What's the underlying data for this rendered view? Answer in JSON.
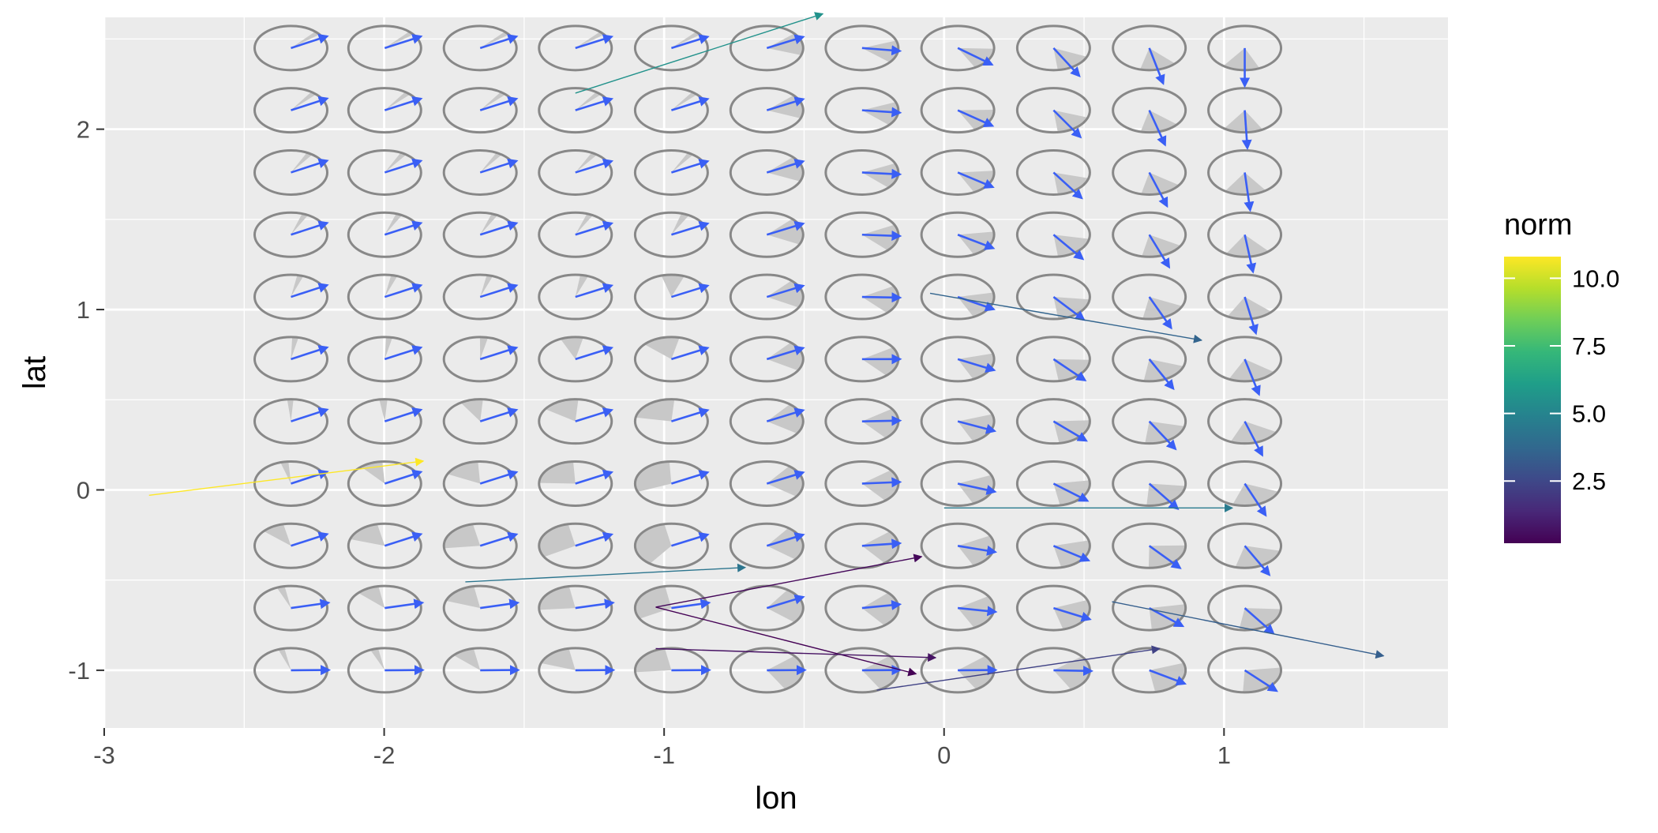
{
  "chart_data": {
    "type": "scatter",
    "description_kind": "vector field glyphs with grey circles and arrows on a lon/lat grid",
    "xlabel": "lon",
    "ylabel": "lat",
    "xlim": [
      -3.0,
      1.8
    ],
    "ylim": [
      -1.32,
      2.62
    ],
    "x_ticks": [
      -3,
      -2,
      -1,
      0,
      1
    ],
    "x_tick_labels": [
      "-3",
      "-2",
      "-1",
      "0",
      "1"
    ],
    "y_ticks": [
      -1,
      0,
      1,
      2
    ],
    "y_tick_labels": [
      "-1",
      "0",
      "1",
      "2"
    ],
    "grid": true,
    "grid_lon": [
      -2.333,
      -1.998,
      -1.657,
      -1.317,
      -0.974,
      -0.633,
      -0.293,
      0.049,
      0.391,
      0.733,
      1.074
    ],
    "grid_lat": [
      -1.0,
      -0.655,
      -0.31,
      0.035,
      0.38,
      0.725,
      1.07,
      1.415,
      1.76,
      2.105,
      2.45
    ],
    "legend": {
      "title": "norm",
      "position": "right",
      "ticks": [
        2.5,
        5.0,
        7.5,
        10.0
      ],
      "tick_labels": [
        "2.5",
        "5.0",
        "7.5",
        "10.0"
      ],
      "range": [
        0.2,
        10.8
      ],
      "colormap": "viridis"
    },
    "colors": {
      "panel": "#EBEBEB",
      "circle": "#888888",
      "wedge": "#C8C8C8",
      "arrow": "#3A5FF5"
    },
    "long_arrows": [
      {
        "x0": -1.317,
        "y0": 2.2,
        "x1": -0.433,
        "y1": 2.64,
        "norm": 5.6
      },
      {
        "x0": -0.05,
        "y0": 1.09,
        "x1": 0.92,
        "y1": 0.83,
        "norm": 3.6
      },
      {
        "x0": -2.84,
        "y0": -0.03,
        "x1": -1.86,
        "y1": 0.16,
        "norm": 10.8
      },
      {
        "x0": 0.0,
        "y0": -0.1,
        "x1": 1.03,
        "y1": -0.1,
        "norm": 4.6
      },
      {
        "x0": -1.71,
        "y0": -0.51,
        "x1": -0.71,
        "y1": -0.43,
        "norm": 4.3
      },
      {
        "x0": -1.03,
        "y0": -0.65,
        "x1": -0.08,
        "y1": -0.37,
        "norm": 0.4
      },
      {
        "x0": -1.03,
        "y0": -0.65,
        "x1": -0.1,
        "y1": -1.02,
        "norm": 0.2
      },
      {
        "x0": -1.03,
        "y0": -0.88,
        "x1": -0.03,
        "y1": -0.93,
        "norm": 0.7
      },
      {
        "x0": -0.24,
        "y0": -1.11,
        "x1": 0.77,
        "y1": -0.88,
        "norm": 2.3
      },
      {
        "x0": 0.6,
        "y0": -0.62,
        "x1": 1.57,
        "y1": -0.92,
        "norm": 3.4
      }
    ]
  }
}
